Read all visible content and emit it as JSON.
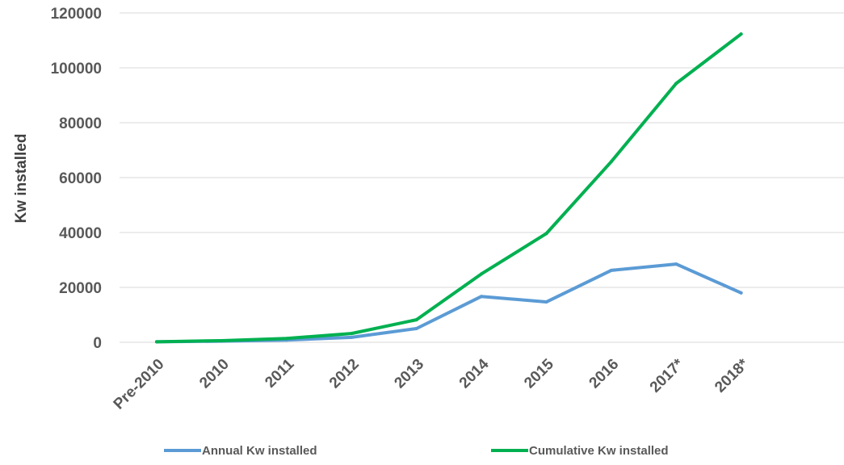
{
  "chart_data": {
    "type": "line",
    "title": "",
    "xlabel": "",
    "ylabel": "Kw installed",
    "ylim": [
      0,
      120000
    ],
    "yticks": [
      "0",
      "20000",
      "40000",
      "60000",
      "80000",
      "100000",
      "120000"
    ],
    "grid": true,
    "legend_position": "bottom",
    "categories": [
      "Pre-2010",
      "2010",
      "2011",
      "2012",
      "2013",
      "2014",
      "2015",
      "2016",
      "2017*",
      "2018*"
    ],
    "series": [
      {
        "name": "Annual Kw installed",
        "color": "#5b9bd5",
        "values": [
          200,
          400,
          800,
          1800,
          5000,
          16700,
          14700,
          26200,
          28500,
          18000
        ]
      },
      {
        "name": "Cumulative Kw installed",
        "color": "#00b050",
        "values": [
          200,
          600,
          1400,
          3200,
          8200,
          24900,
          39600,
          65800,
          94300,
          112300
        ]
      }
    ]
  }
}
